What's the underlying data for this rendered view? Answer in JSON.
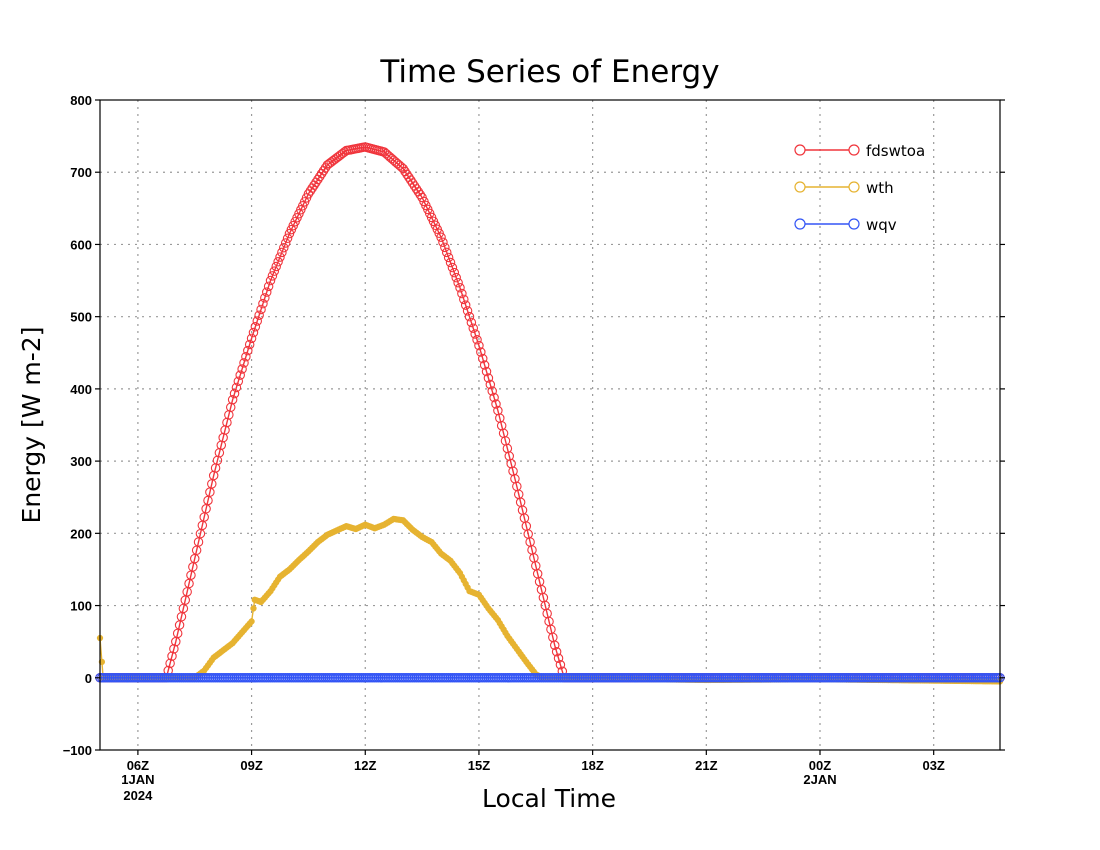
{
  "chart_data": {
    "type": "line",
    "title": "Time Series of Energy",
    "xlabel": "Local Time",
    "ylabel": "Energy [W m-2]",
    "ylim": [
      -100,
      800
    ],
    "yticks": [
      -100,
      0,
      100,
      200,
      300,
      400,
      500,
      600,
      700,
      800
    ],
    "xlim": [
      "2024-01-01T05:00",
      "2024-01-02T04:45"
    ],
    "xticks": [
      {
        "time": "2024-01-01T06:00",
        "label": "06Z",
        "date": "1JAN",
        "year": "2024"
      },
      {
        "time": "2024-01-01T09:00",
        "label": "09Z"
      },
      {
        "time": "2024-01-01T12:00",
        "label": "12Z"
      },
      {
        "time": "2024-01-01T15:00",
        "label": "15Z"
      },
      {
        "time": "2024-01-01T18:00",
        "label": "18Z"
      },
      {
        "time": "2024-01-01T21:00",
        "label": "21Z"
      },
      {
        "time": "2024-01-02T00:00",
        "label": "00Z",
        "date": "2JAN"
      },
      {
        "time": "2024-01-02T03:00",
        "label": "03Z"
      }
    ],
    "grid": true,
    "legend_position": "top-right",
    "series": [
      {
        "name": "fdswtoa",
        "color": "#f0353c",
        "marker": "open-circle",
        "points": [
          [
            "2024-01-01T05:00",
            0
          ],
          [
            "2024-01-01T06:45",
            0
          ],
          [
            "2024-01-01T07:00",
            50
          ],
          [
            "2024-01-01T07:30",
            165
          ],
          [
            "2024-01-01T08:00",
            280
          ],
          [
            "2024-01-01T08:30",
            385
          ],
          [
            "2024-01-01T09:00",
            470
          ],
          [
            "2024-01-01T09:30",
            550
          ],
          [
            "2024-01-01T10:00",
            615
          ],
          [
            "2024-01-01T10:30",
            670
          ],
          [
            "2024-01-01T11:00",
            710
          ],
          [
            "2024-01-01T11:30",
            730
          ],
          [
            "2024-01-01T12:00",
            735
          ],
          [
            "2024-01-01T12:30",
            728
          ],
          [
            "2024-01-01T13:00",
            705
          ],
          [
            "2024-01-01T13:30",
            665
          ],
          [
            "2024-01-01T14:00",
            610
          ],
          [
            "2024-01-01T14:30",
            540
          ],
          [
            "2024-01-01T15:00",
            460
          ],
          [
            "2024-01-01T15:30",
            370
          ],
          [
            "2024-01-01T16:00",
            265
          ],
          [
            "2024-01-01T16:30",
            155
          ],
          [
            "2024-01-01T17:00",
            45
          ],
          [
            "2024-01-01T17:15",
            0
          ],
          [
            "2024-01-02T04:45",
            0
          ]
        ]
      },
      {
        "name": "wth",
        "color": "#e6b331",
        "marker": "open-circle",
        "points": [
          [
            "2024-01-01T05:00",
            55
          ],
          [
            "2024-01-01T05:05",
            0
          ],
          [
            "2024-01-01T07:30",
            0
          ],
          [
            "2024-01-01T07:45",
            10
          ],
          [
            "2024-01-01T08:00",
            28
          ],
          [
            "2024-01-01T08:15",
            38
          ],
          [
            "2024-01-01T08:30",
            48
          ],
          [
            "2024-01-01T08:45",
            63
          ],
          [
            "2024-01-01T09:00",
            78
          ],
          [
            "2024-01-01T09:05",
            108
          ],
          [
            "2024-01-01T09:15",
            105
          ],
          [
            "2024-01-01T09:30",
            120
          ],
          [
            "2024-01-01T09:45",
            140
          ],
          [
            "2024-01-01T10:00",
            150
          ],
          [
            "2024-01-01T10:15",
            163
          ],
          [
            "2024-01-01T10:30",
            175
          ],
          [
            "2024-01-01T10:45",
            188
          ],
          [
            "2024-01-01T11:00",
            198
          ],
          [
            "2024-01-01T11:15",
            204
          ],
          [
            "2024-01-01T11:30",
            210
          ],
          [
            "2024-01-01T11:45",
            206
          ],
          [
            "2024-01-01T12:00",
            212
          ],
          [
            "2024-01-01T12:15",
            207
          ],
          [
            "2024-01-01T12:30",
            212
          ],
          [
            "2024-01-01T12:45",
            220
          ],
          [
            "2024-01-01T13:00",
            218
          ],
          [
            "2024-01-01T13:15",
            205
          ],
          [
            "2024-01-01T13:30",
            195
          ],
          [
            "2024-01-01T13:45",
            188
          ],
          [
            "2024-01-01T14:00",
            172
          ],
          [
            "2024-01-01T14:15",
            162
          ],
          [
            "2024-01-01T14:30",
            145
          ],
          [
            "2024-01-01T14:45",
            120
          ],
          [
            "2024-01-01T15:00",
            115
          ],
          [
            "2024-01-01T15:15",
            96
          ],
          [
            "2024-01-01T15:30",
            80
          ],
          [
            "2024-01-01T15:45",
            58
          ],
          [
            "2024-01-01T16:00",
            40
          ],
          [
            "2024-01-01T16:15",
            22
          ],
          [
            "2024-01-01T16:30",
            5
          ],
          [
            "2024-01-01T16:40",
            0
          ],
          [
            "2024-01-01T21:00",
            -3
          ],
          [
            "2024-01-02T00:00",
            -2
          ],
          [
            "2024-01-02T04:45",
            -5
          ]
        ]
      },
      {
        "name": "wqv",
        "color": "#3355f5",
        "marker": "open-circle",
        "points": [
          [
            "2024-01-01T05:00",
            0
          ],
          [
            "2024-01-02T04:45",
            0
          ]
        ]
      }
    ]
  }
}
